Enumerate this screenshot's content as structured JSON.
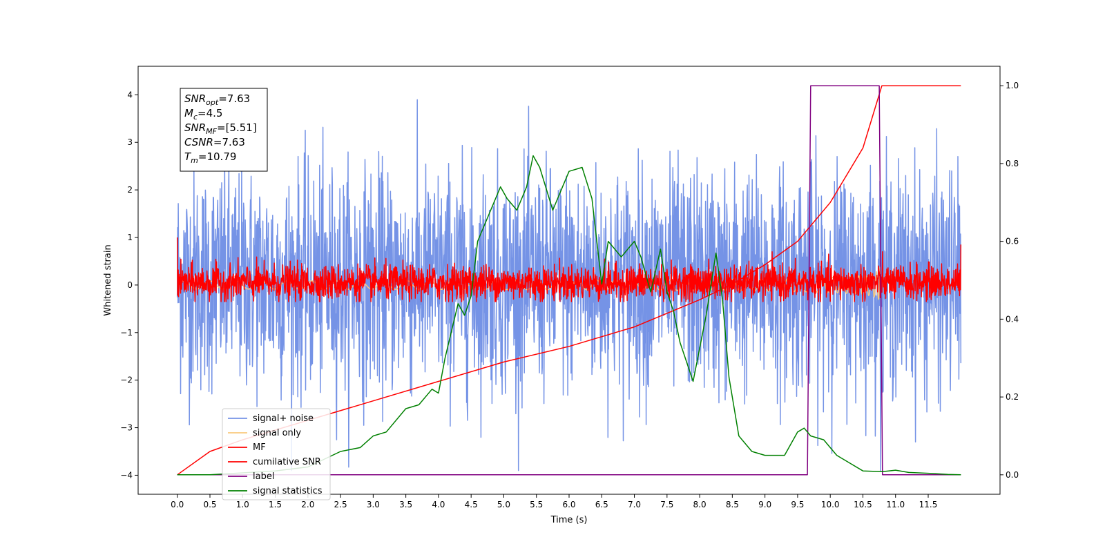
{
  "chart_data": {
    "type": "line",
    "xlabel": "Time (s)",
    "ylabel": "Whitened strain",
    "xlim": [
      -0.6,
      12.6
    ],
    "ylim": [
      -4.4,
      4.6
    ],
    "y2lim": [
      -0.05,
      1.05
    ],
    "x_ticks": [
      0.0,
      0.5,
      1.0,
      1.5,
      2.0,
      2.5,
      3.0,
      3.5,
      4.0,
      4.5,
      5.0,
      5.5,
      6.0,
      6.5,
      7.0,
      7.5,
      8.0,
      8.5,
      9.0,
      9.5,
      10.0,
      10.5,
      11.0,
      11.5
    ],
    "x_tick_labels": [
      "0.0",
      "0.5",
      "1.0",
      "1.5",
      "2.0",
      "2.5",
      "3.0",
      "3.5",
      "4.0",
      "4.5",
      "5.0",
      "5.5",
      "6.0",
      "6.5",
      "7.0",
      "7.5",
      "8.0",
      "8.5",
      "9.0",
      "9.5",
      "10.0",
      "10.5",
      "11.0",
      "11.5"
    ],
    "y_ticks": [
      -4,
      -3,
      -2,
      -1,
      0,
      1,
      2,
      3,
      4
    ],
    "y_tick_labels": [
      "−4",
      "−3",
      "−2",
      "−1",
      "0",
      "1",
      "2",
      "3",
      "4"
    ],
    "y2_ticks": [
      0.0,
      0.2,
      0.4,
      0.6,
      0.8,
      1.0
    ],
    "y2_tick_labels": [
      "0.0",
      "0.2",
      "0.4",
      "0.6",
      "0.8",
      "1.0"
    ],
    "legend_position": "lower-left",
    "grid": false,
    "annotation": {
      "lines": [
        {
          "main": "SNR",
          "sub": "opt",
          "rest": "=7.63"
        },
        {
          "main": "M",
          "sub": "c",
          "rest": "=4.5"
        },
        {
          "main": "SNR",
          "sub": "MF",
          "rest": "=[5.51]"
        },
        {
          "main": "CSNR",
          "sub": "",
          "rest": "=7.63"
        },
        {
          "main": "T",
          "sub": "m",
          "rest": "=10.79"
        }
      ]
    },
    "series": [
      {
        "name": "signal+ noise",
        "color": "#7593e6",
        "axis": "left",
        "kind": "noise",
        "x_range": [
          0.0,
          12.0
        ],
        "mean": 0.1,
        "typical_range": [
          -2.5,
          2.6
        ],
        "extremes": [
          -3.9,
          4.2
        ]
      },
      {
        "name": "signal only",
        "color": "#f9c97d",
        "axis": "left",
        "kind": "chirp",
        "x_range": [
          0.0,
          10.79
        ],
        "peak_amplitude": 0.4
      },
      {
        "name": "MF",
        "color": "#ff0000",
        "axis": "left",
        "kind": "noise",
        "x_range": [
          0.0,
          12.0
        ],
        "mean": 0.05,
        "typical_range": [
          -0.3,
          0.5
        ],
        "extremes": [
          -0.35,
          1.0
        ]
      },
      {
        "name": "cumilative SNR",
        "color": "#ff0000",
        "axis": "right",
        "x": [
          0.0,
          0.5,
          1.0,
          2.0,
          3.0,
          4.0,
          5.0,
          6.0,
          7.0,
          8.0,
          8.5,
          9.0,
          9.5,
          10.0,
          10.5,
          10.79,
          12.0
        ],
        "y": [
          0.0,
          0.06,
          0.09,
          0.14,
          0.19,
          0.24,
          0.29,
          0.33,
          0.38,
          0.45,
          0.49,
          0.54,
          0.6,
          0.7,
          0.84,
          1.0,
          1.0
        ]
      },
      {
        "name": "label",
        "color": "#800080",
        "axis": "right",
        "x": [
          0.0,
          9.65,
          9.7,
          10.75,
          10.8,
          12.0
        ],
        "y": [
          0.0,
          0.0,
          1.0,
          1.0,
          0.0,
          0.0
        ]
      },
      {
        "name": "signal statistics",
        "color": "#008000",
        "axis": "right",
        "x": [
          0.0,
          0.5,
          1.0,
          1.5,
          2.0,
          2.5,
          2.8,
          3.0,
          3.2,
          3.5,
          3.7,
          3.9,
          4.0,
          4.1,
          4.3,
          4.4,
          4.5,
          4.6,
          4.8,
          4.95,
          5.05,
          5.2,
          5.35,
          5.45,
          5.55,
          5.75,
          5.9,
          6.0,
          6.2,
          6.35,
          6.5,
          6.6,
          6.8,
          7.0,
          7.1,
          7.25,
          7.4,
          7.5,
          7.6,
          7.7,
          7.9,
          8.1,
          8.25,
          8.35,
          8.45,
          8.6,
          8.8,
          9.0,
          9.3,
          9.5,
          9.6,
          9.7,
          9.9,
          10.1,
          10.3,
          10.5,
          10.8,
          11.0,
          11.2,
          11.5,
          11.8,
          12.0
        ],
        "y": [
          0.0,
          0.0,
          0.005,
          0.01,
          0.02,
          0.06,
          0.07,
          0.1,
          0.11,
          0.17,
          0.18,
          0.22,
          0.21,
          0.3,
          0.44,
          0.41,
          0.46,
          0.6,
          0.68,
          0.74,
          0.71,
          0.68,
          0.74,
          0.82,
          0.79,
          0.68,
          0.74,
          0.78,
          0.79,
          0.71,
          0.49,
          0.6,
          0.56,
          0.6,
          0.56,
          0.47,
          0.58,
          0.47,
          0.42,
          0.34,
          0.24,
          0.41,
          0.57,
          0.45,
          0.25,
          0.1,
          0.06,
          0.05,
          0.05,
          0.11,
          0.12,
          0.1,
          0.09,
          0.05,
          0.03,
          0.01,
          0.008,
          0.012,
          0.006,
          0.004,
          0.001,
          0.0
        ]
      }
    ]
  }
}
